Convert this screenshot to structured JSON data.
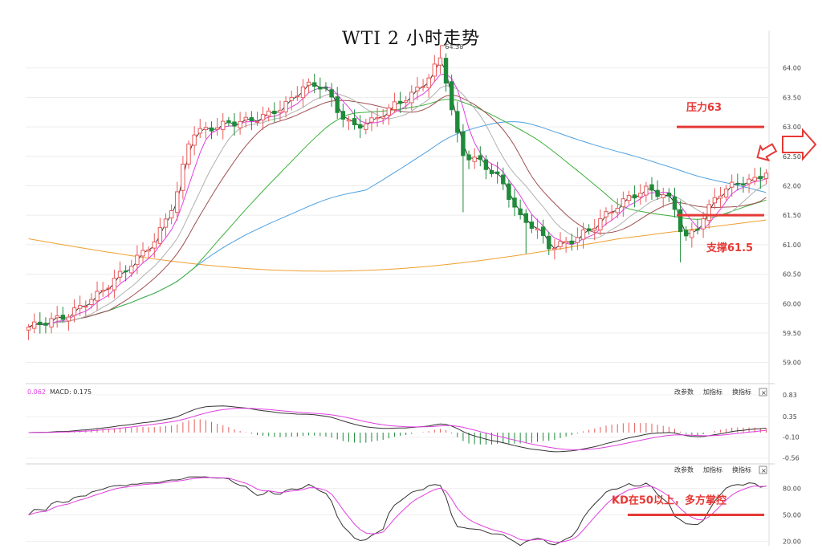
{
  "chart_data": {
    "type": "candlestick",
    "title": "WTI 2 小时走势",
    "price_axis": {
      "ticks": [
        "64.00",
        "63.50",
        "63.00",
        "62.50",
        "62.00",
        "61.50",
        "61.00",
        "60.50",
        "60.00",
        "59.50",
        "59.00"
      ],
      "range": [
        58.75,
        64.5
      ]
    },
    "peak_label": "64.38",
    "annotations": {
      "resistance": {
        "label": "压力63",
        "value": 63.0
      },
      "support": {
        "label": "支撑61.5",
        "value": 61.5
      },
      "kd_note": {
        "label": "KD在50以上，多方掌控",
        "value": 50
      }
    },
    "macd_panel": {
      "header_left": "0.062",
      "header_macd": "MACD: 0.175",
      "ticks": [
        "0.83",
        "0.35",
        "-0.10",
        "-0.56"
      ],
      "range": [
        -0.6,
        0.9
      ],
      "buttons": [
        "改参数",
        "加指标",
        "换指标"
      ]
    },
    "kd_panel": {
      "ticks": [
        "80.00",
        "50.00",
        "20.00"
      ],
      "range": [
        15,
        95
      ],
      "buttons": [
        "改参数",
        "加指标",
        "换指标"
      ]
    },
    "colors": {
      "up": "#e85a5a",
      "down": "#1e8a3a",
      "ma5": "#333333",
      "ma10": "#e040e0",
      "ma20": "#b0b0b0",
      "ma30": "#a05050",
      "ma60": "#3cb03c",
      "ma120": "#4ea0e0",
      "ma250": "#f0a030",
      "annotation": "#e53935"
    },
    "candle_count": 130
  },
  "close_icon_label": "×"
}
